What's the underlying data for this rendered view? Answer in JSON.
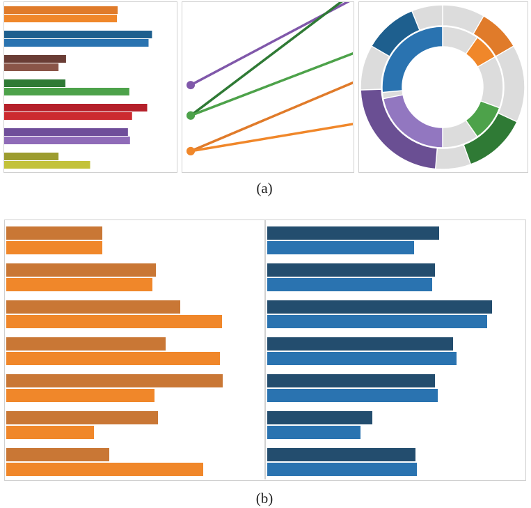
{
  "captions": {
    "a": "(a)",
    "b": "(b)"
  },
  "chart_data": [
    {
      "panel": "a-left",
      "type": "bar",
      "orientation": "horizontal",
      "xlim": [
        0,
        250
      ],
      "axes": "none",
      "series": [
        {
          "values": [
            165,
            215,
            90,
            89,
            208,
            180,
            79
          ],
          "colors": [
            "#e07b2a",
            "#1e5f8e",
            "#6a3d35",
            "#2f7a35",
            "#b5202a",
            "#6f4e9a",
            "#9c9c2f"
          ]
        },
        {
          "values": [
            164,
            210,
            79,
            182,
            186,
            183,
            125
          ],
          "colors": [
            "#f0872a",
            "#2a73b0",
            "#8a5548",
            "#4da24a",
            "#cc2a2f",
            "#8f6bb8",
            "#c3c23a"
          ]
        }
      ]
    },
    {
      "panel": "a-middle",
      "type": "line",
      "style": "slope",
      "axes": "none",
      "series": [
        {
          "color": "#8058aa",
          "start": 0.51,
          "end": 1.05
        },
        {
          "color": "#2f7a35",
          "start": 0.33,
          "end": 1.1
        },
        {
          "color": "#4da24a",
          "start": 0.33,
          "end": 0.72
        },
        {
          "color": "#e07b2a",
          "start": 0.12,
          "end": 0.55
        },
        {
          "color": "#f0872a",
          "start": 0.12,
          "end": 0.29
        }
      ]
    },
    {
      "panel": "a-right",
      "type": "pie",
      "style": "nested-donut",
      "background_color": "#dcdcdc",
      "outer_ring": [
        {
          "start_deg": 30,
          "end_deg": 60,
          "color": "#e07b2a"
        },
        {
          "start_deg": 115,
          "end_deg": 160,
          "color": "#2f7a35"
        },
        {
          "start_deg": 185,
          "end_deg": 268,
          "color": "#6a4f93"
        },
        {
          "start_deg": 300,
          "end_deg": 338,
          "color": "#1e5f8e"
        }
      ],
      "inner_ring": [
        {
          "start_deg": 35,
          "end_deg": 60,
          "color": "#f0872a"
        },
        {
          "start_deg": 110,
          "end_deg": 145,
          "color": "#4da24a"
        },
        {
          "start_deg": 180,
          "end_deg": 259,
          "color": "#9277c0"
        },
        {
          "start_deg": 265,
          "end_deg": 360,
          "color": "#2a73b0"
        }
      ]
    },
    {
      "panel": "b-left",
      "type": "bar",
      "orientation": "horizontal",
      "xlim": [
        0,
        370
      ],
      "axes": "none",
      "colors": {
        "series1": "#c97735",
        "series2": "#f0872a"
      },
      "series": [
        {
          "values": [
            138,
            215,
            250,
            229,
            311,
            218,
            148
          ]
        },
        {
          "values": [
            138,
            210,
            310,
            307,
            213,
            126,
            283
          ]
        }
      ]
    },
    {
      "panel": "b-right",
      "type": "bar",
      "orientation": "horizontal",
      "xlim": [
        0,
        370
      ],
      "axes": "none",
      "colors": {
        "series1": "#234d6e",
        "series2": "#2a73b0"
      },
      "series": [
        {
          "values": [
            247,
            241,
            323,
            267,
            241,
            151,
            213
          ]
        },
        {
          "values": [
            211,
            237,
            316,
            272,
            245,
            134,
            215
          ]
        }
      ]
    }
  ]
}
